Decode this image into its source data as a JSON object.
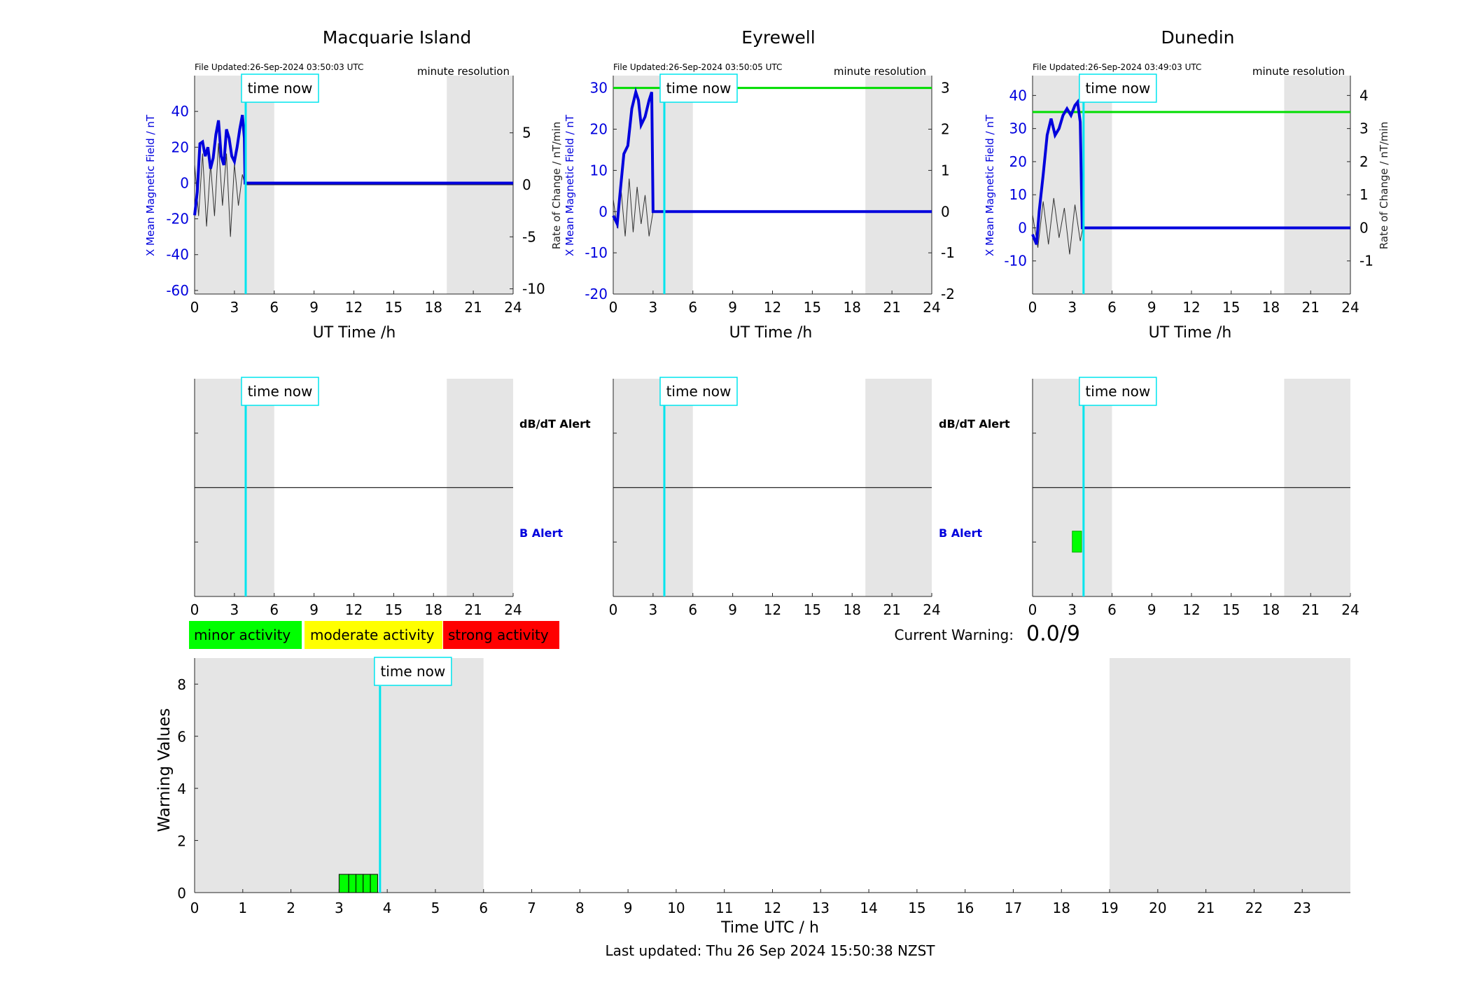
{
  "panels": [
    {
      "title": "Macquarie Island",
      "file_updated": "File Updated:26-Sep-2024 03:50:03 UTC",
      "resolution": "minute resolution",
      "left_ylabel": "X Mean Magnetic Field / nT",
      "right_ylabel": "",
      "xlabel": "UT Time /h",
      "now_label": "time now",
      "alert_now_label": "time now",
      "dbdt_label": "dB/dT Alert",
      "b_label": "B Alert",
      "show_alert_labels": true
    },
    {
      "title": "Eyrewell",
      "file_updated": "File Updated:26-Sep-2024 03:50:05 UTC",
      "resolution": "minute resolution",
      "left_ylabel": "X Mean Magnetic Field / nT",
      "right_ylabel": "Rate of Change / nT/min",
      "xlabel": "UT Time /h",
      "now_label": "time now",
      "alert_now_label": "time now",
      "dbdt_label": "dB/dT Alert",
      "b_label": "B Alert",
      "show_alert_labels": true
    },
    {
      "title": "Dunedin",
      "file_updated": "File Updated:26-Sep-2024 03:49:03 UTC",
      "resolution": "minute resolution",
      "left_ylabel": "X Mean Magnetic Field / nT",
      "right_ylabel": "Rate of Change / nT/min",
      "xlabel": "UT Time /h",
      "now_label": "time now",
      "alert_now_label": "time now",
      "dbdt_label": "",
      "b_label": "",
      "show_alert_labels": false
    }
  ],
  "legend": {
    "minor": "minor activity",
    "moderate": "moderate activity",
    "strong": "strong activity"
  },
  "current_warning": {
    "label": "Current Warning:",
    "value": "0.0/9"
  },
  "bottom": {
    "ylabel": "Warning Values",
    "xlabel": "Time UTC / h",
    "now_label": "time now"
  },
  "footer": "Last updated: Thu 26 Sep 2024 15:50:38 NZST",
  "colors": {
    "field": "#0000dd",
    "rate": "#333333",
    "now": "#00e5ee",
    "threshold": "#00dd00",
    "night": "#e5e5e5",
    "minor": "#00ff00",
    "moderate": "#ffff00",
    "strong": "#ff0000"
  },
  "chart_data": [
    {
      "type": "line",
      "station": "Macquarie Island",
      "x_range": [
        0,
        24
      ],
      "x_ticks": [
        0,
        3,
        6,
        9,
        12,
        15,
        18,
        21,
        24
      ],
      "y_left_range": [
        -62,
        60
      ],
      "y_left_ticks": [
        -60,
        -40,
        -20,
        0,
        20,
        40
      ],
      "y_right_range": [
        -10.5,
        10.5
      ],
      "y_right_ticks": [
        -10,
        -5,
        0,
        5
      ],
      "shaded_hours": [
        [
          0,
          6
        ],
        [
          19,
          24
        ]
      ],
      "now_hour": 3.85,
      "threshold_right": null,
      "field_series": {
        "x": [
          0,
          0.2,
          0.4,
          0.6,
          0.8,
          1.0,
          1.2,
          1.4,
          1.6,
          1.8,
          2.0,
          2.2,
          2.4,
          2.6,
          2.8,
          3.0,
          3.2,
          3.4,
          3.6,
          3.75,
          3.8,
          4.0,
          24
        ],
        "y": [
          -18,
          -5,
          22,
          23,
          15,
          20,
          8,
          14,
          27,
          35,
          15,
          10,
          30,
          25,
          15,
          12,
          20,
          30,
          38,
          25,
          0,
          0,
          0
        ]
      },
      "rate_series": {
        "x": [
          0,
          0.3,
          0.6,
          0.9,
          1.2,
          1.5,
          1.8,
          2.1,
          2.4,
          2.7,
          3.0,
          3.3,
          3.6,
          3.8,
          24
        ],
        "y": [
          2,
          -3,
          3,
          -4,
          2,
          -3,
          4,
          -2,
          3,
          -5,
          2,
          -2,
          1,
          0,
          0
        ]
      },
      "alert_blocks": []
    },
    {
      "type": "line",
      "station": "Eyrewell",
      "x_range": [
        0,
        24
      ],
      "x_ticks": [
        0,
        3,
        6,
        9,
        12,
        15,
        18,
        21,
        24
      ],
      "y_left_range": [
        -20,
        33
      ],
      "y_left_ticks": [
        -20,
        -10,
        0,
        10,
        20,
        30
      ],
      "y_right_range": [
        -2,
        3.3
      ],
      "y_right_ticks": [
        -2,
        -1,
        0,
        1,
        2,
        3
      ],
      "shaded_hours": [
        [
          0,
          6
        ],
        [
          19,
          24
        ]
      ],
      "now_hour": 3.85,
      "threshold_right": 3,
      "field_series": {
        "x": [
          0,
          0.3,
          0.5,
          0.8,
          1.1,
          1.4,
          1.7,
          1.9,
          2.1,
          2.4,
          2.7,
          2.9,
          3.0,
          3.05,
          24
        ],
        "y": [
          -1,
          -3,
          4,
          14,
          16,
          25,
          29,
          27,
          21,
          23,
          27,
          29,
          0,
          0,
          0
        ]
      },
      "rate_series": {
        "x": [
          0,
          0.3,
          0.6,
          0.9,
          1.2,
          1.5,
          1.8,
          2.1,
          2.4,
          2.7,
          3.0,
          24
        ],
        "y": [
          0.3,
          -0.4,
          0.5,
          -0.6,
          0.8,
          -0.5,
          0.6,
          -0.3,
          0.4,
          -0.6,
          0,
          0
        ]
      },
      "alert_blocks": []
    },
    {
      "type": "line",
      "station": "Dunedin",
      "x_range": [
        0,
        24
      ],
      "x_ticks": [
        0,
        3,
        6,
        9,
        12,
        15,
        18,
        21,
        24
      ],
      "y_left_range": [
        -20,
        46
      ],
      "y_left_ticks": [
        -10,
        0,
        10,
        20,
        30,
        40
      ],
      "y_right_range": [
        -2,
        4.6
      ],
      "y_right_ticks": [
        -1,
        0,
        1,
        2,
        3,
        4
      ],
      "shaded_hours": [
        [
          0,
          6
        ],
        [
          19,
          24
        ]
      ],
      "now_hour": 3.85,
      "threshold_right": 3.5,
      "field_series": {
        "x": [
          0,
          0.3,
          0.5,
          0.8,
          1.1,
          1.4,
          1.7,
          2.0,
          2.3,
          2.6,
          2.9,
          3.2,
          3.4,
          3.6,
          3.75,
          3.8,
          24
        ],
        "y": [
          -2,
          -5,
          5,
          16,
          28,
          33,
          28,
          30,
          34,
          36,
          34,
          37,
          38,
          32,
          0,
          0,
          0
        ]
      },
      "rate_series": {
        "x": [
          0,
          0.4,
          0.8,
          1.2,
          1.6,
          2.0,
          2.4,
          2.8,
          3.2,
          3.6,
          3.8,
          24
        ],
        "y": [
          0.4,
          -0.6,
          0.8,
          -0.5,
          0.9,
          -0.3,
          0.6,
          -0.8,
          0.7,
          -0.4,
          0,
          0
        ]
      },
      "alert_blocks": [
        {
          "start": 3.0,
          "end": 3.7,
          "level": "minor"
        }
      ]
    },
    {
      "type": "bar",
      "title": "",
      "xlabel": "Time UTC / h",
      "ylabel": "Warning Values",
      "x_range": [
        0,
        24
      ],
      "x_ticks": [
        0,
        1,
        2,
        3,
        4,
        5,
        6,
        7,
        8,
        9,
        10,
        11,
        12,
        13,
        14,
        15,
        16,
        17,
        18,
        19,
        20,
        21,
        22,
        23
      ],
      "ylim": [
        0,
        9
      ],
      "y_ticks": [
        0,
        2,
        4,
        6,
        8
      ],
      "shaded_hours": [
        [
          0,
          6
        ],
        [
          19,
          24
        ]
      ],
      "now_hour": 3.85,
      "bars": [
        {
          "start": 3.0,
          "end": 3.2,
          "value": 0.7
        },
        {
          "start": 3.2,
          "end": 3.35,
          "value": 0.7
        },
        {
          "start": 3.35,
          "end": 3.5,
          "value": 0.7
        },
        {
          "start": 3.5,
          "end": 3.65,
          "value": 0.7
        },
        {
          "start": 3.65,
          "end": 3.8,
          "value": 0.7
        }
      ]
    }
  ]
}
